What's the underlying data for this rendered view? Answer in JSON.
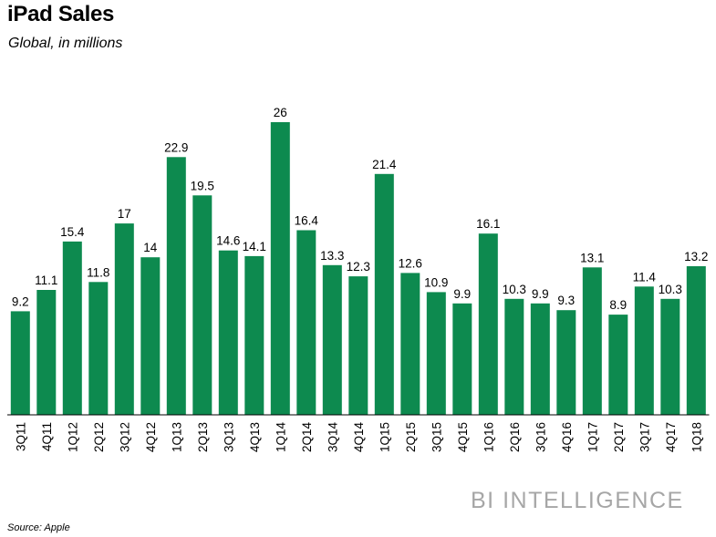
{
  "header": {
    "title": "iPad Sales",
    "subtitle": "Global, in millions"
  },
  "footer": {
    "brand": "BI INTELLIGENCE",
    "source": "Source: Apple"
  },
  "colors": {
    "bar": "#0d8a4f",
    "axis": "#000000"
  },
  "chart_data": {
    "type": "bar",
    "title": "iPad Sales",
    "subtitle": "Global, in millions",
    "xlabel": "",
    "ylabel": "",
    "ylim": [
      0,
      26
    ],
    "grid": false,
    "legend": "none",
    "categories": [
      "3Q11",
      "4Q11",
      "1Q12",
      "2Q12",
      "3Q12",
      "4Q12",
      "1Q13",
      "2Q13",
      "3Q13",
      "4Q13",
      "1Q14",
      "2Q14",
      "3Q14",
      "4Q14",
      "1Q15",
      "2Q15",
      "3Q15",
      "4Q15",
      "1Q16",
      "2Q16",
      "3Q16",
      "4Q16",
      "1Q17",
      "2Q17",
      "3Q17",
      "4Q17",
      "1Q18"
    ],
    "values": [
      9.2,
      11.1,
      15.4,
      11.8,
      17,
      14,
      22.9,
      19.5,
      14.6,
      14.1,
      26,
      16.4,
      13.3,
      12.3,
      21.4,
      12.6,
      10.9,
      9.9,
      16.1,
      10.3,
      9.9,
      9.3,
      13.1,
      8.9,
      11.4,
      10.3,
      13.2
    ],
    "data_labels": [
      "9.2",
      "11.1",
      "15.4",
      "11.8",
      "17",
      "14",
      "22.9",
      "19.5",
      "14.6",
      "14.1",
      "26",
      "16.4",
      "13.3",
      "12.3",
      "21.4",
      "12.6",
      "10.9",
      "9.9",
      "16.1",
      "10.3",
      "9.9",
      "9.3",
      "13.1",
      "8.9",
      "11.4",
      "10.3",
      "13.2"
    ]
  }
}
